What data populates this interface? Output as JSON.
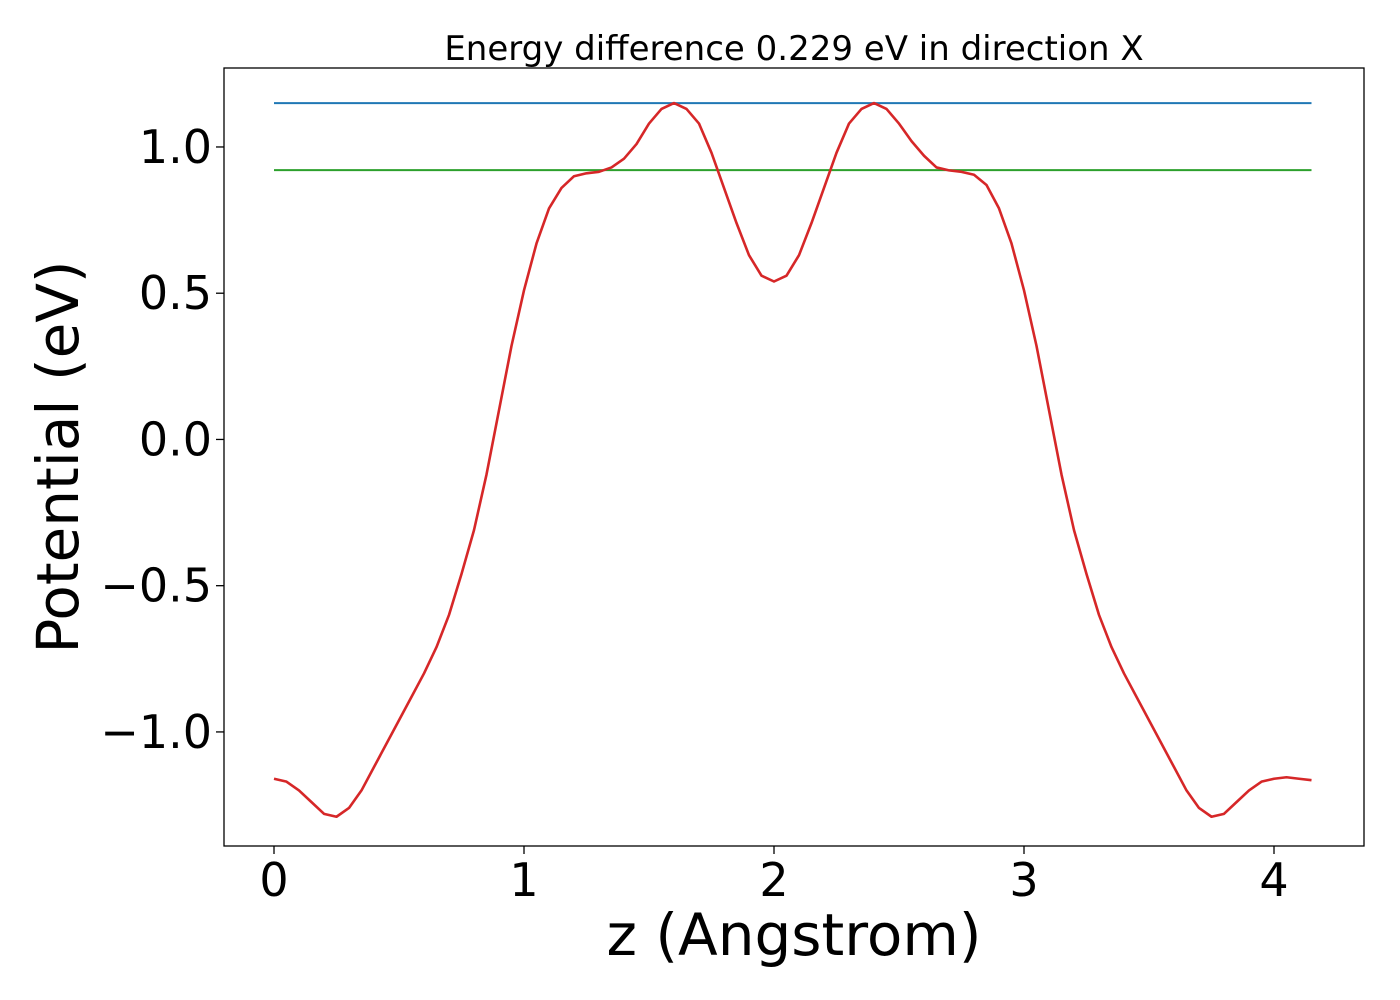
{
  "chart_data": {
    "type": "line",
    "title": "Energy difference 0.229 eV in direction X",
    "xlabel": "z (Angstrom)",
    "ylabel": "Potential (eV)",
    "xlim": [
      -0.2,
      4.36
    ],
    "ylim": [
      -1.39,
      1.27
    ],
    "x_ticks": [
      0,
      1,
      2,
      3,
      4
    ],
    "x_tick_labels": [
      "0",
      "1",
      "2",
      "3",
      "4"
    ],
    "y_ticks": [
      -1.0,
      -0.5,
      0.0,
      0.5,
      1.0
    ],
    "y_tick_labels": [
      "−1.0",
      "−0.5",
      "0.0",
      "0.5",
      "1.0"
    ],
    "grid": false,
    "series": [
      {
        "color": "#d62728",
        "x": [
          0,
          0.05,
          0.1,
          0.15,
          0.2,
          0.25,
          0.3,
          0.35,
          0.4,
          0.45,
          0.5,
          0.55,
          0.6,
          0.65,
          0.7,
          0.75,
          0.8,
          0.85,
          0.9,
          0.95,
          1.0,
          1.05,
          1.1,
          1.15,
          1.2,
          1.25,
          1.3,
          1.35,
          1.4,
          1.45,
          1.5,
          1.55,
          1.6,
          1.65,
          1.7,
          1.75,
          1.8,
          1.85,
          1.9,
          1.95,
          2.0,
          2.05,
          2.1,
          2.15,
          2.2,
          2.25,
          2.3,
          2.35,
          2.4,
          2.45,
          2.5,
          2.55,
          2.6,
          2.65,
          2.7,
          2.75,
          2.8,
          2.85,
          2.9,
          2.95,
          3.0,
          3.05,
          3.1,
          3.15,
          3.2,
          3.25,
          3.3,
          3.35,
          3.4,
          3.45,
          3.5,
          3.55,
          3.6,
          3.65,
          3.7,
          3.75,
          3.8,
          3.85,
          3.9,
          3.95,
          4.0,
          4.05,
          4.1,
          4.15
        ],
        "y": [
          -1.16,
          -1.17,
          -1.2,
          -1.24,
          -1.28,
          -1.29,
          -1.26,
          -1.2,
          -1.12,
          -1.04,
          -0.96,
          -0.88,
          -0.8,
          -0.71,
          -0.6,
          -0.46,
          -0.31,
          -0.12,
          0.1,
          0.32,
          0.51,
          0.67,
          0.79,
          0.86,
          0.9,
          0.91,
          0.915,
          0.93,
          0.96,
          1.01,
          1.08,
          1.13,
          1.15,
          1.13,
          1.08,
          0.98,
          0.86,
          0.74,
          0.63,
          0.56,
          0.54,
          0.56,
          0.63,
          0.74,
          0.86,
          0.98,
          1.08,
          1.13,
          1.15,
          1.13,
          1.08,
          1.02,
          0.97,
          0.93,
          0.92,
          0.915,
          0.905,
          0.87,
          0.79,
          0.67,
          0.51,
          0.32,
          0.1,
          -0.12,
          -0.31,
          -0.46,
          -0.6,
          -0.71,
          -0.8,
          -0.88,
          -0.96,
          -1.04,
          -1.12,
          -1.2,
          -1.26,
          -1.29,
          -1.28,
          -1.24,
          -1.2,
          -1.17,
          -1.16,
          -1.155,
          -1.16,
          -1.165
        ]
      }
    ],
    "hlines": [
      {
        "y": 1.15,
        "x_start": 0,
        "x_end": 4.15,
        "color": "#1f77b4"
      },
      {
        "y": 0.921,
        "x_start": 0,
        "x_end": 4.15,
        "color": "#2ca02c"
      }
    ]
  }
}
